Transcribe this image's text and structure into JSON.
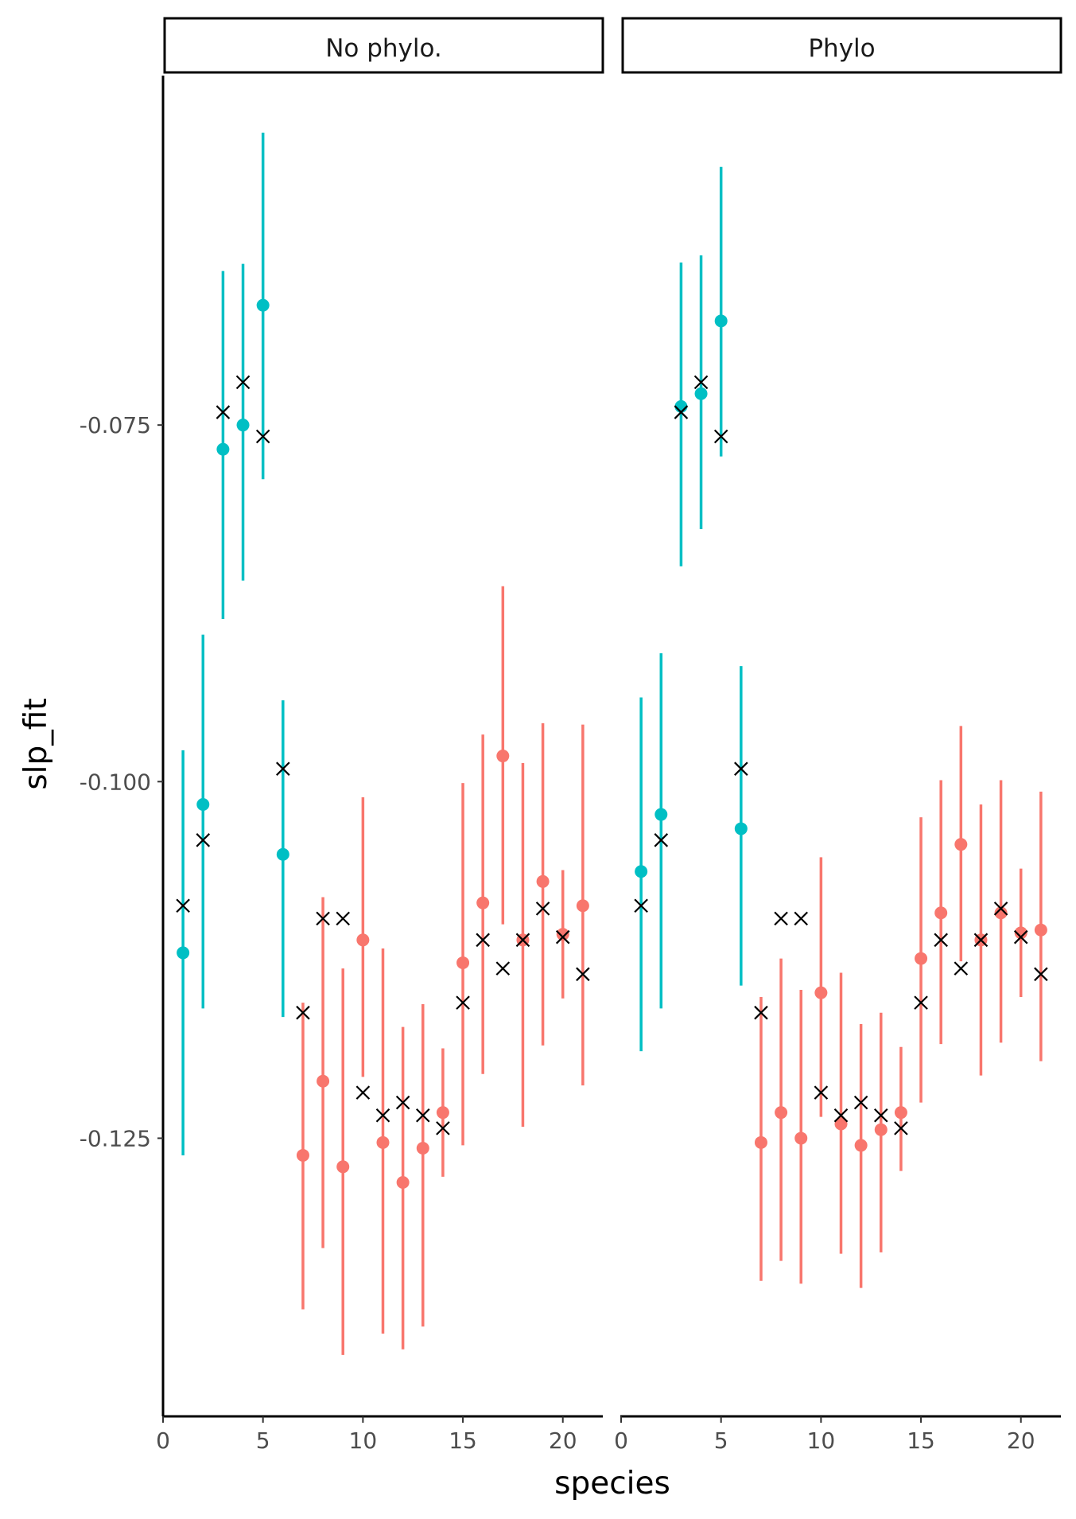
{
  "chart_data": {
    "type": "scatter",
    "title": "",
    "xlabel": "species",
    "ylabel": "slp_fit",
    "xlim": [
      0,
      22
    ],
    "ylim": [
      -0.1445,
      -0.0505
    ],
    "x_ticks": [
      0,
      5,
      10,
      15,
      20
    ],
    "x_tick_labels": [
      "0",
      "5",
      "10",
      "15",
      "20"
    ],
    "y_ticks": [
      -0.075,
      -0.1,
      -0.125
    ],
    "y_tick_labels": [
      "-0.075",
      "-0.100",
      "-0.125"
    ],
    "grid": false,
    "legend": "none",
    "colors": {
      "group_a": "#00BFC4",
      "group_b": "#F8766D",
      "true_marker": "#000000"
    },
    "panels": [
      {
        "strip_label": "No phylo.",
        "estimates": [
          {
            "x": 1,
            "y": -0.112,
            "lo": -0.1262,
            "hi": -0.0978,
            "group": "a"
          },
          {
            "x": 2,
            "y": -0.1016,
            "lo": -0.1159,
            "hi": -0.0897,
            "group": "a"
          },
          {
            "x": 3,
            "y": -0.0767,
            "lo": -0.0886,
            "hi": -0.0642,
            "group": "a"
          },
          {
            "x": 4,
            "y": -0.075,
            "lo": -0.0859,
            "hi": -0.0637,
            "group": "a"
          },
          {
            "x": 5,
            "y": -0.0666,
            "lo": -0.0788,
            "hi": -0.0545,
            "group": "a"
          },
          {
            "x": 6,
            "y": -0.1051,
            "lo": -0.1165,
            "hi": -0.0943,
            "group": "a"
          },
          {
            "x": 7,
            "y": -0.1262,
            "lo": -0.137,
            "hi": -0.1155,
            "group": "b"
          },
          {
            "x": 8,
            "y": -0.121,
            "lo": -0.1327,
            "hi": -0.1081,
            "group": "b"
          },
          {
            "x": 9,
            "y": -0.127,
            "lo": -0.1402,
            "hi": -0.1131,
            "group": "b"
          },
          {
            "x": 10,
            "y": -0.1111,
            "lo": -0.1207,
            "hi": -0.1011,
            "group": "b"
          },
          {
            "x": 11,
            "y": -0.1253,
            "lo": -0.1387,
            "hi": -0.1117,
            "group": "b"
          },
          {
            "x": 12,
            "y": -0.1281,
            "lo": -0.1398,
            "hi": -0.1172,
            "group": "b"
          },
          {
            "x": 13,
            "y": -0.1257,
            "lo": -0.1382,
            "hi": -0.1156,
            "group": "b"
          },
          {
            "x": 14,
            "y": -0.1232,
            "lo": -0.1277,
            "hi": -0.1187,
            "group": "b"
          },
          {
            "x": 15,
            "y": -0.1127,
            "lo": -0.1255,
            "hi": -0.1001,
            "group": "b"
          },
          {
            "x": 16,
            "y": -0.1085,
            "lo": -0.1205,
            "hi": -0.0967,
            "group": "b"
          },
          {
            "x": 17,
            "y": -0.0982,
            "lo": -0.11,
            "hi": -0.0863,
            "group": "b"
          },
          {
            "x": 18,
            "y": -0.1111,
            "lo": -0.1242,
            "hi": -0.0987,
            "group": "b"
          },
          {
            "x": 19,
            "y": -0.107,
            "lo": -0.1185,
            "hi": -0.0959,
            "group": "b"
          },
          {
            "x": 20,
            "y": -0.1107,
            "lo": -0.1152,
            "hi": -0.1062,
            "group": "b"
          },
          {
            "x": 21,
            "y": -0.1087,
            "lo": -0.1213,
            "hi": -0.096,
            "group": "b"
          }
        ],
        "true_values": [
          {
            "x": 1,
            "y": -0.1087
          },
          {
            "x": 2,
            "y": -0.1041
          },
          {
            "x": 3,
            "y": -0.0741
          },
          {
            "x": 4,
            "y": -0.072
          },
          {
            "x": 5,
            "y": -0.0758
          },
          {
            "x": 6,
            "y": -0.0991
          },
          {
            "x": 7,
            "y": -0.1162
          },
          {
            "x": 8,
            "y": -0.1096
          },
          {
            "x": 9,
            "y": -0.1096
          },
          {
            "x": 10,
            "y": -0.1218
          },
          {
            "x": 11,
            "y": -0.1234
          },
          {
            "x": 12,
            "y": -0.1225
          },
          {
            "x": 13,
            "y": -0.1234
          },
          {
            "x": 14,
            "y": -0.1243
          },
          {
            "x": 15,
            "y": -0.1155
          },
          {
            "x": 16,
            "y": -0.1111
          },
          {
            "x": 17,
            "y": -0.1131
          },
          {
            "x": 18,
            "y": -0.1111
          },
          {
            "x": 19,
            "y": -0.1089
          },
          {
            "x": 20,
            "y": -0.1109
          },
          {
            "x": 21,
            "y": -0.1135
          }
        ]
      },
      {
        "strip_label": "Phylo",
        "estimates": [
          {
            "x": 1,
            "y": -0.1063,
            "lo": -0.1189,
            "hi": -0.0941,
            "group": "a"
          },
          {
            "x": 2,
            "y": -0.1023,
            "lo": -0.1159,
            "hi": -0.091,
            "group": "a"
          },
          {
            "x": 3,
            "y": -0.0737,
            "lo": -0.0849,
            "hi": -0.0636,
            "group": "a"
          },
          {
            "x": 4,
            "y": -0.0728,
            "lo": -0.0823,
            "hi": -0.0631,
            "group": "a"
          },
          {
            "x": 5,
            "y": -0.0677,
            "lo": -0.0772,
            "hi": -0.0569,
            "group": "a"
          },
          {
            "x": 6,
            "y": -0.1033,
            "lo": -0.1143,
            "hi": -0.0919,
            "group": "a"
          },
          {
            "x": 7,
            "y": -0.1253,
            "lo": -0.135,
            "hi": -0.1151,
            "group": "b"
          },
          {
            "x": 8,
            "y": -0.1232,
            "lo": -0.1336,
            "hi": -0.1124,
            "group": "b"
          },
          {
            "x": 9,
            "y": -0.125,
            "lo": -0.1352,
            "hi": -0.1146,
            "group": "b"
          },
          {
            "x": 10,
            "y": -0.1148,
            "lo": -0.1235,
            "hi": -0.1053,
            "group": "b"
          },
          {
            "x": 11,
            "y": -0.124,
            "lo": -0.1331,
            "hi": -0.1134,
            "group": "b"
          },
          {
            "x": 12,
            "y": -0.1255,
            "lo": -0.1355,
            "hi": -0.117,
            "group": "b"
          },
          {
            "x": 13,
            "y": -0.1244,
            "lo": -0.133,
            "hi": -0.1162,
            "group": "b"
          },
          {
            "x": 14,
            "y": -0.1232,
            "lo": -0.1273,
            "hi": -0.1186,
            "group": "b"
          },
          {
            "x": 15,
            "y": -0.1124,
            "lo": -0.1225,
            "hi": -0.1025,
            "group": "b"
          },
          {
            "x": 16,
            "y": -0.1092,
            "lo": -0.1184,
            "hi": -0.0999,
            "group": "b"
          },
          {
            "x": 17,
            "y": -0.1044,
            "lo": -0.1126,
            "hi": -0.0961,
            "group": "b"
          },
          {
            "x": 18,
            "y": -0.1111,
            "lo": -0.1206,
            "hi": -0.1016,
            "group": "b"
          },
          {
            "x": 19,
            "y": -0.1092,
            "lo": -0.1183,
            "hi": -0.0999,
            "group": "b"
          },
          {
            "x": 20,
            "y": -0.1106,
            "lo": -0.1151,
            "hi": -0.1061,
            "group": "b"
          },
          {
            "x": 21,
            "y": -0.1104,
            "lo": -0.1196,
            "hi": -0.1007,
            "group": "b"
          }
        ],
        "true_values": [
          {
            "x": 1,
            "y": -0.1087
          },
          {
            "x": 2,
            "y": -0.1041
          },
          {
            "x": 3,
            "y": -0.0741
          },
          {
            "x": 4,
            "y": -0.072
          },
          {
            "x": 5,
            "y": -0.0758
          },
          {
            "x": 6,
            "y": -0.0991
          },
          {
            "x": 7,
            "y": -0.1162
          },
          {
            "x": 8,
            "y": -0.1096
          },
          {
            "x": 9,
            "y": -0.1096
          },
          {
            "x": 10,
            "y": -0.1218
          },
          {
            "x": 11,
            "y": -0.1234
          },
          {
            "x": 12,
            "y": -0.1225
          },
          {
            "x": 13,
            "y": -0.1234
          },
          {
            "x": 14,
            "y": -0.1243
          },
          {
            "x": 15,
            "y": -0.1155
          },
          {
            "x": 16,
            "y": -0.1111
          },
          {
            "x": 17,
            "y": -0.1131
          },
          {
            "x": 18,
            "y": -0.1111
          },
          {
            "x": 19,
            "y": -0.1089
          },
          {
            "x": 20,
            "y": -0.1109
          },
          {
            "x": 21,
            "y": -0.1135
          }
        ]
      }
    ]
  }
}
